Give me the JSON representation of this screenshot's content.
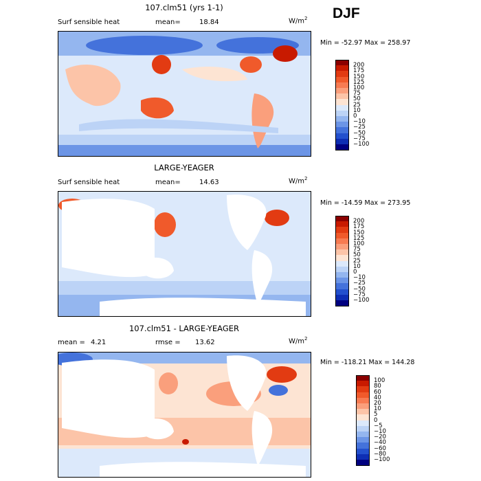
{
  "season": "DJF",
  "units_base": "W/m",
  "units_exp": "2",
  "colors": {
    "dark_red": "#8b0000",
    "red1": "#c81a00",
    "red2": "#e23b12",
    "red3": "#f05a2b",
    "red4": "#f77b52",
    "red5": "#fa9f7c",
    "red6": "#fcc4a8",
    "red7": "#fde4d3",
    "white": "#ffffff",
    "blue7": "#dce9fb",
    "blue6": "#bcd3f6",
    "blue5": "#94b6ef",
    "blue4": "#6c95e6",
    "blue3": "#4472db",
    "blue2": "#2350cd",
    "blue1": "#0e2eb4",
    "dark_blue": "#000080",
    "land": "#ffffff"
  },
  "panels": [
    {
      "title": "107.clm51 (yrs 1-1)",
      "variable": "Surf sensible heat",
      "stat1_label": "mean=",
      "stat1_value": "18.84",
      "minmax": "Min = -52.97 Max = 258.97",
      "levels": [
        "200",
        "175",
        "150",
        "125",
        "100",
        "75",
        "50",
        "25",
        "10",
        "0",
        "−10",
        "−25",
        "−50",
        "−75",
        "−100"
      ]
    },
    {
      "title": "LARGE-YEAGER",
      "variable": "Surf sensible heat",
      "stat1_label": "mean=",
      "stat1_value": "14.63",
      "minmax": "Min = -14.59 Max = 273.95",
      "levels": [
        "200",
        "175",
        "150",
        "125",
        "100",
        "75",
        "50",
        "25",
        "10",
        "0",
        "−10",
        "−25",
        "−50",
        "−75",
        "−100"
      ]
    },
    {
      "title": "107.clm51 - LARGE-YEAGER",
      "stat1_label": "mean =",
      "stat1_value": "4.21",
      "stat2_label": "rmse =",
      "stat2_value": "13.62",
      "minmax": "Min = -118.21 Max = 144.28",
      "levels": [
        "100",
        "80",
        "60",
        "40",
        "20",
        "10",
        "5",
        "0",
        "−5",
        "−10",
        "−20",
        "−40",
        "−60",
        "−80",
        "−100"
      ]
    }
  ]
}
